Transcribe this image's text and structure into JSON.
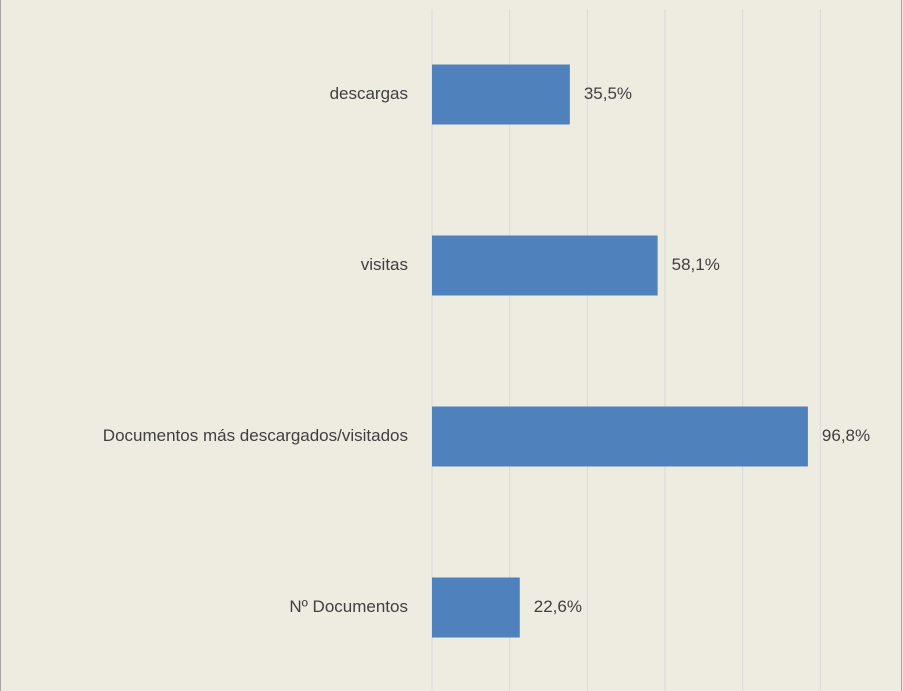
{
  "chart_data": {
    "type": "bar",
    "orientation": "horizontal",
    "categories": [
      "descargas",
      "visitas",
      "Documentos más descargados/visitados",
      "Nº Documentos"
    ],
    "values": [
      35.5,
      58.1,
      96.8,
      22.6
    ],
    "value_labels": [
      "35,5%",
      "58,1%",
      "96,8%",
      "22,6%"
    ],
    "color": "#4f81bd",
    "xlim": [
      0,
      120
    ],
    "xticks": [
      0,
      20,
      40,
      60,
      80,
      100
    ],
    "grid": true
  }
}
